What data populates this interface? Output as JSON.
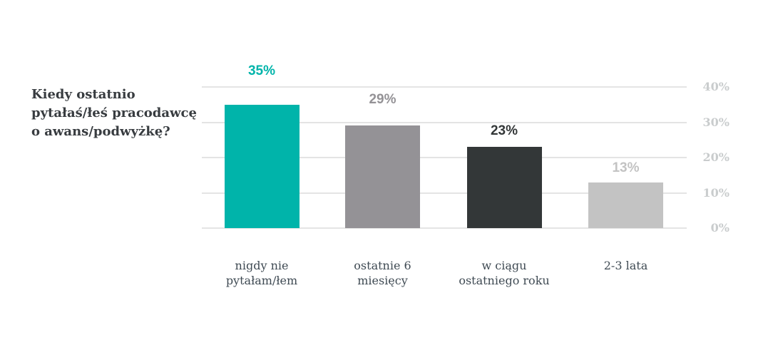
{
  "title": {
    "text": "Kiedy ostatnio pytałaś/łeś pracodawcę o awans/podwyżkę?",
    "lines": [
      "Kiedy ostatnio",
      "pytałaś/łeś pracodawcę",
      "o awans/podwyżkę?"
    ],
    "color": "#383c40"
  },
  "chart_data": {
    "type": "bar",
    "title": "Kiedy ostatnio pytałaś/łeś pracodawcę o awans/podwyżkę?",
    "categories": [
      "nigdy nie pytałam/łem",
      "ostatnie 6 miesięcy",
      "w ciągu ostatniego roku",
      "2-3 lata"
    ],
    "category_lines": [
      [
        "nigdy nie",
        "pytałam/łem"
      ],
      [
        "ostatnie 6",
        "miesięcy"
      ],
      [
        "w ciągu",
        "ostatniego roku"
      ],
      [
        "2-3 lata"
      ]
    ],
    "values": [
      35,
      29,
      23,
      13
    ],
    "data_labels": [
      "35%",
      "29%",
      "23%",
      "13%"
    ],
    "bar_colors": [
      "#00b4aa",
      "#949296",
      "#333738",
      "#c3c3c3"
    ],
    "xlabel": "",
    "ylabel": "",
    "ylim": [
      0,
      40
    ],
    "yticks": [
      {
        "value": 40,
        "label": "40%"
      },
      {
        "value": 30,
        "label": "30%"
      },
      {
        "value": 20,
        "label": "20%"
      },
      {
        "value": 10,
        "label": "10%"
      },
      {
        "value": 0,
        "label": "0%"
      }
    ],
    "grid": true,
    "legend": false,
    "colors": {
      "gridline": "#e4e4e4",
      "y_tick_label": "#c9cccd",
      "category_label": "#3f4a53",
      "background": "#ffffff"
    }
  }
}
